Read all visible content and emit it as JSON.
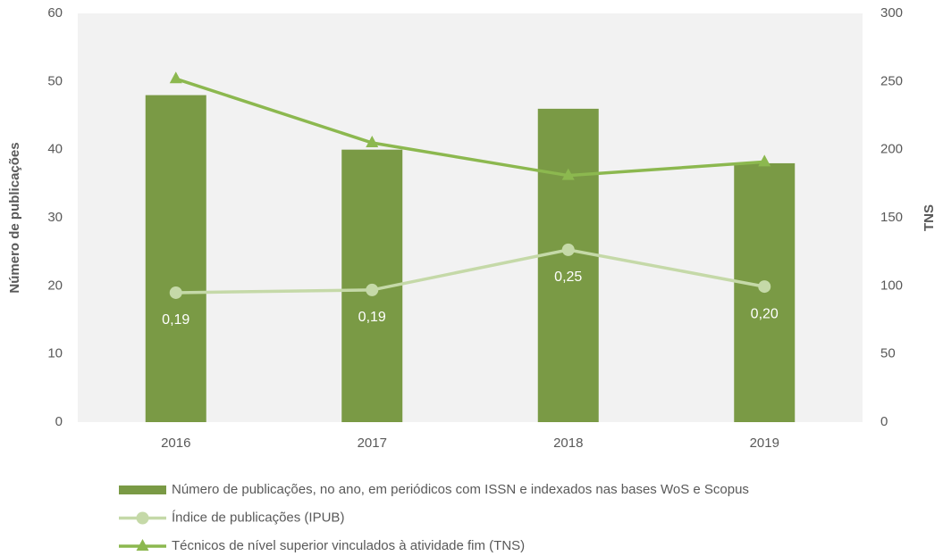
{
  "chart_data": {
    "type": "bar",
    "categories": [
      "2016",
      "2017",
      "2018",
      "2019"
    ],
    "ylabel": "Número de publicações",
    "y2label": "TNS",
    "ylim": [
      0,
      60
    ],
    "yticks": [
      0,
      10,
      20,
      30,
      40,
      50,
      60
    ],
    "y2lim": [
      0,
      300
    ],
    "y2ticks": [
      0,
      50,
      100,
      150,
      200,
      250,
      300
    ],
    "y3lim": [
      0,
      0.6
    ],
    "series": [
      {
        "name": "Número de publicações, no ano, em periódicos com ISSN e indexados nas bases WoS e Scopus",
        "type": "bar",
        "color": "#7a9a45",
        "values": [
          48,
          40,
          46,
          38
        ]
      },
      {
        "name": "Índice de publicações (IPUB)",
        "type": "line",
        "marker": "circle",
        "color": "#c5d9a8",
        "axis": "y3",
        "values": [
          0.19,
          0.194,
          0.253,
          0.199
        ],
        "value_labels": [
          "0,19",
          "0,19",
          "0,25",
          "0,20"
        ]
      },
      {
        "name": "Técnicos de nível superior vinculados à atividade fim (TNS)",
        "type": "line",
        "marker": "triangle",
        "color": "#8cb84f",
        "axis": "y2",
        "values": [
          252,
          205,
          181,
          191
        ]
      }
    ],
    "background": "#f2f2f2",
    "legend": "bottom"
  }
}
